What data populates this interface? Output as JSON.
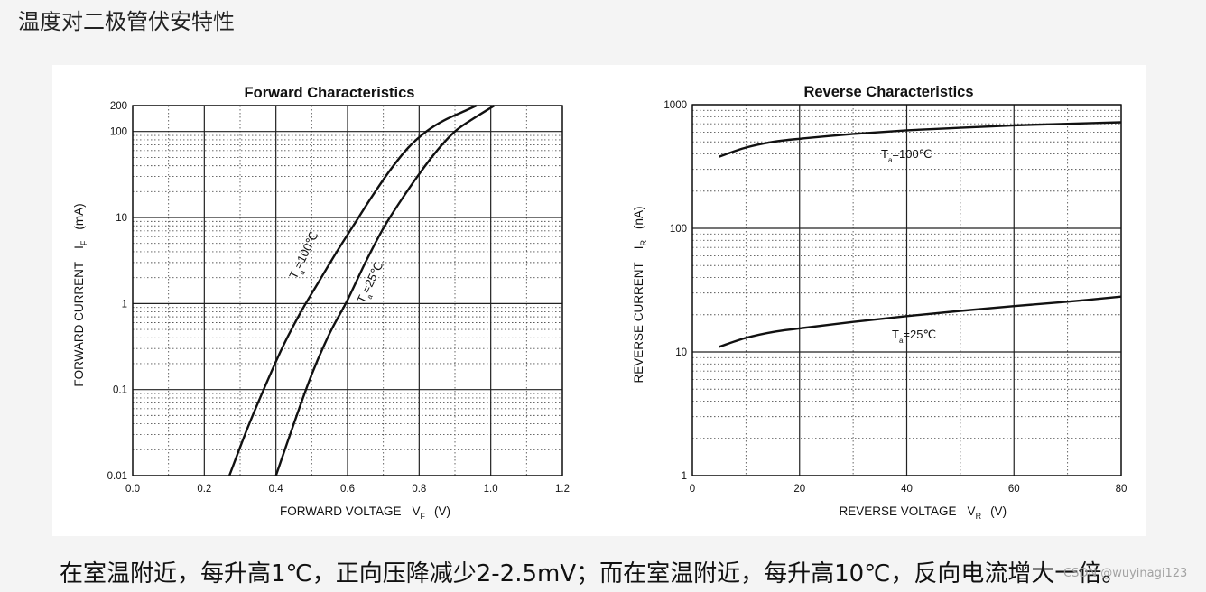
{
  "page": {
    "title": "温度对二极管伏安特性",
    "caption": "在室温附近，每升高1℃，正向压降减少2-2.5mV；而在室温附近，每升高10℃，反向电流增大一倍。",
    "watermark": "CSDN @wuyinagi123"
  },
  "chart_data": [
    {
      "type": "line",
      "title": "Forward    Characteristics",
      "xlabel_main": "FORWARD VOLTAGE",
      "xlabel_symbol": "V",
      "xlabel_sub": "F",
      "xlabel_unit": "(V)",
      "ylabel_main": "FORWARD CURRENT",
      "ylabel_symbol": "I",
      "ylabel_sub": "F",
      "ylabel_unit": "(mA)",
      "xscale": "linear",
      "yscale": "log",
      "xlim": [
        0,
        1.2
      ],
      "ylim": [
        0.01,
        200
      ],
      "xticks": [
        0.0,
        0.2,
        0.4,
        0.6,
        0.8,
        1.0,
        1.2
      ],
      "xtick_labels": [
        "0.0",
        "0.2",
        "0.4",
        "0.6",
        "0.8",
        "1.0",
        "1.2"
      ],
      "yticks": [
        0.01,
        0.1,
        1,
        10,
        100,
        200
      ],
      "ytick_labels": [
        "0.01",
        "0.1",
        "1",
        "10",
        "100",
        "200"
      ],
      "grid": true,
      "series": [
        {
          "name_main": "T",
          "name_sub": "a",
          "name_rest": "=100℃",
          "x": [
            0.27,
            0.32,
            0.37,
            0.42,
            0.47,
            0.52,
            0.57,
            0.62,
            0.67,
            0.72,
            0.77,
            0.82,
            0.87,
            0.93,
            0.96
          ],
          "y": [
            0.01,
            0.035,
            0.11,
            0.32,
            0.8,
            1.8,
            4.0,
            8.5,
            18,
            36,
            65,
            100,
            135,
            175,
            200
          ]
        },
        {
          "name_main": "T",
          "name_sub": "a",
          "name_rest": "=25℃",
          "x": [
            0.4,
            0.45,
            0.5,
            0.55,
            0.6,
            0.65,
            0.7,
            0.75,
            0.8,
            0.85,
            0.9,
            0.95,
            1.01
          ],
          "y": [
            0.01,
            0.04,
            0.15,
            0.45,
            1.1,
            3.0,
            7.5,
            16,
            32,
            60,
            100,
            140,
            200
          ]
        }
      ]
    },
    {
      "type": "line",
      "title": "Reverse    Characteristics",
      "xlabel_main": "REVERSE VOLTAGE",
      "xlabel_symbol": "V",
      "xlabel_sub": "R",
      "xlabel_unit": "(V)",
      "ylabel_main": "REVERSE CURRENT",
      "ylabel_symbol": "I",
      "ylabel_sub": "R",
      "ylabel_unit": "(nA)",
      "xscale": "linear",
      "yscale": "log",
      "xlim": [
        0,
        80
      ],
      "ylim": [
        1,
        1000
      ],
      "xticks": [
        0,
        20,
        40,
        60,
        80
      ],
      "xtick_labels": [
        "0",
        "20",
        "40",
        "60",
        "80"
      ],
      "yticks": [
        1,
        10,
        100,
        1000
      ],
      "ytick_labels": [
        "1",
        "10",
        "100",
        "1000"
      ],
      "grid": true,
      "series": [
        {
          "name_main": "T",
          "name_sub": "a",
          "name_rest": "=100℃",
          "x": [
            5,
            10,
            15,
            20,
            30,
            40,
            50,
            60,
            70,
            80
          ],
          "y": [
            380,
            450,
            500,
            530,
            580,
            620,
            650,
            680,
            700,
            720
          ]
        },
        {
          "name_main": "T",
          "name_sub": "a",
          "name_rest": "=25℃",
          "x": [
            5,
            10,
            15,
            20,
            30,
            40,
            50,
            60,
            70,
            80
          ],
          "y": [
            11,
            13,
            14.5,
            15.5,
            17.5,
            19.5,
            21.5,
            23.5,
            25.5,
            28
          ]
        }
      ]
    }
  ]
}
